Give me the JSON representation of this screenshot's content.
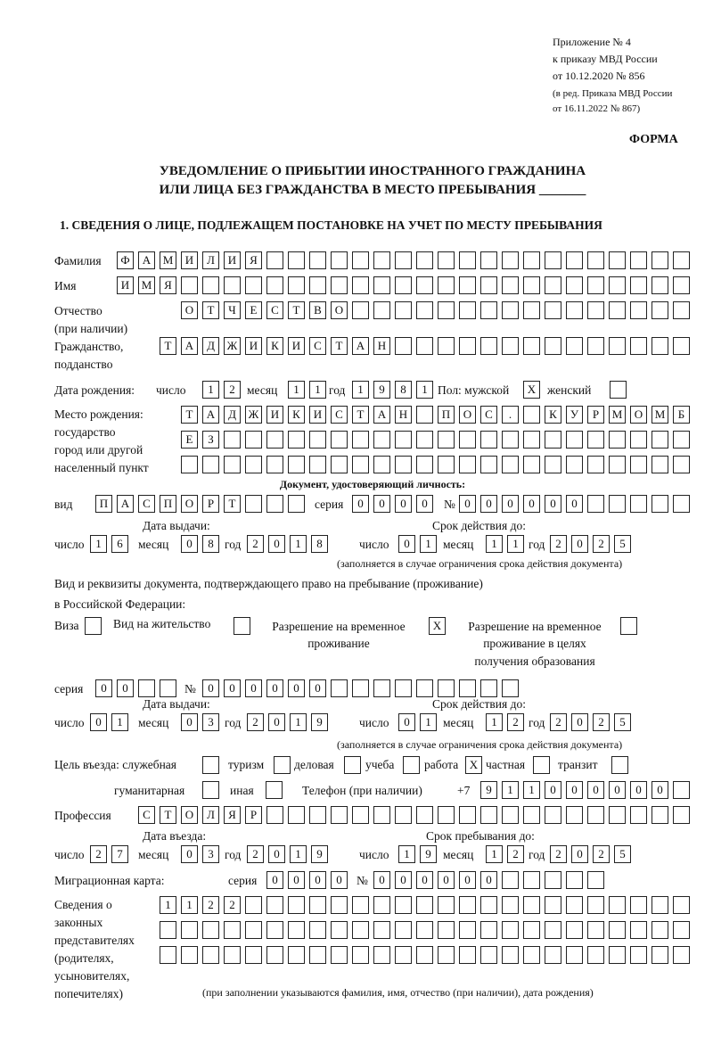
{
  "header": {
    "appendix": [
      "Приложение № 4",
      "к приказу МВД России",
      "от 10.12.2020 № 856"
    ],
    "revision": [
      "(в ред. Приказа МВД России",
      "от 16.11.2022 № 867)"
    ],
    "form_label": "ФОРМА",
    "title_line1": "УВЕДОМЛЕНИЕ О ПРИБЫТИИ ИНОСТРАННОГО ГРАЖДАНИНА",
    "title_line2": "ИЛИ ЛИЦА БЕЗ ГРАЖДАНСТВА В МЕСТО ПРЕБЫВАНИЯ _______",
    "section1": "1. СВЕДЕНИЯ О ЛИЦЕ, ПОДЛЕЖАЩЕМ ПОСТАНОВКЕ НА УЧЕТ ПО МЕСТУ ПРЕБЫВАНИЯ"
  },
  "labels": {
    "surname": "Фамилия",
    "name": "Имя",
    "patronymic": "Отчество",
    "patronymic2": "(при наличии)",
    "citizenship": "Гражданство,",
    "citizenship2": "подданство",
    "dob": "Дата рождения:",
    "day": "число",
    "month": "месяц",
    "year": "год",
    "sex": "Пол: мужской",
    "female": "женский",
    "pob1": "Место рождения:",
    "pob2": "государство",
    "pob3": "город или другой",
    "pob4": "населенный пункт",
    "id_doc": "Документ, удостоверяющий личность:",
    "kind": "вид",
    "series": "серия",
    "number": "№",
    "issue_date": "Дата выдачи:",
    "valid_until": "Срок действия до:",
    "validity_note": "(заполняется в случае ограничения срока действия документа)",
    "right_doc1": "Вид и реквизиты документа, подтверждающего право на пребывание (проживание)",
    "right_doc2": "в Российской Федерации:",
    "visa": "Виза",
    "residence": "Вид на жительство",
    "trp1": "Разрешение на временное",
    "trp2": "проживание",
    "trpe1": "Разрешение на временное",
    "trpe2": "проживание в целях",
    "trpe3": "получения образования",
    "purpose": "Цель въезда: служебная",
    "tourism": "туризм",
    "business": "деловая",
    "study": "учеба",
    "work": "работа",
    "private": "частная",
    "transit": "транзит",
    "humanitarian": "гуманитарная",
    "other": "иная",
    "phone": "Телефон (при наличии)",
    "phone_prefix": "+7",
    "profession": "Профессия",
    "entry_date": "Дата въезда:",
    "stay_until": "Срок пребывания до:",
    "migration_card": "Миграционная карта:",
    "reps1": "Сведения о",
    "reps2": "законных",
    "reps3": "представителях",
    "reps4": "(родителях,",
    "reps5": "усыновителях,",
    "reps6": "попечителях)",
    "reps_note": "(при заполнении указываются фамилия, имя, отчество (при наличии), дата рождения)"
  },
  "fields": {
    "surname": "ФАМИЛИЯ",
    "name": "ИМЯ",
    "patronymic": "ОТЧЕСТВО",
    "citizenship": "ТАДЖИКИСТАН",
    "dob_day": "12",
    "dob_month": "11",
    "dob_year": "1981",
    "sex_male": "X",
    "sex_female": "",
    "pob_line1": "ТАДЖИКИСТАН ПОС. КУРМОМБ",
    "pob_line2": "ЕЗ",
    "pob_line3": "",
    "id_kind": "ПАСПОРТ",
    "id_series": "0000",
    "id_number": "000000",
    "id_issue_day": "16",
    "id_issue_month": "08",
    "id_issue_year": "2018",
    "id_valid_day": "01",
    "id_valid_month": "11",
    "id_valid_year": "2025",
    "doc_visa": "",
    "doc_residence": "",
    "doc_trp": "X",
    "doc_trp_edu": "",
    "doc_series": "00",
    "doc_number": "000000",
    "doc_issue_day": "01",
    "doc_issue_month": "03",
    "doc_issue_year": "2019",
    "doc_valid_day": "01",
    "doc_valid_month": "12",
    "doc_valid_year": "2025",
    "purpose_service": "",
    "purpose_tourism": "",
    "purpose_business": "",
    "purpose_study": "",
    "purpose_work": "X",
    "purpose_private": "",
    "purpose_transit": "",
    "purpose_humanitarian": "",
    "purpose_other": "",
    "phone": "911000000",
    "profession": "СТОЛЯР",
    "entry_day": "27",
    "entry_month": "03",
    "entry_year": "2019",
    "stay_day": "19",
    "stay_month": "12",
    "stay_year": "2025",
    "mc_series": "0000",
    "mc_number": "000000",
    "reps_line1": "1122",
    "reps_line2": "",
    "reps_line3": ""
  }
}
